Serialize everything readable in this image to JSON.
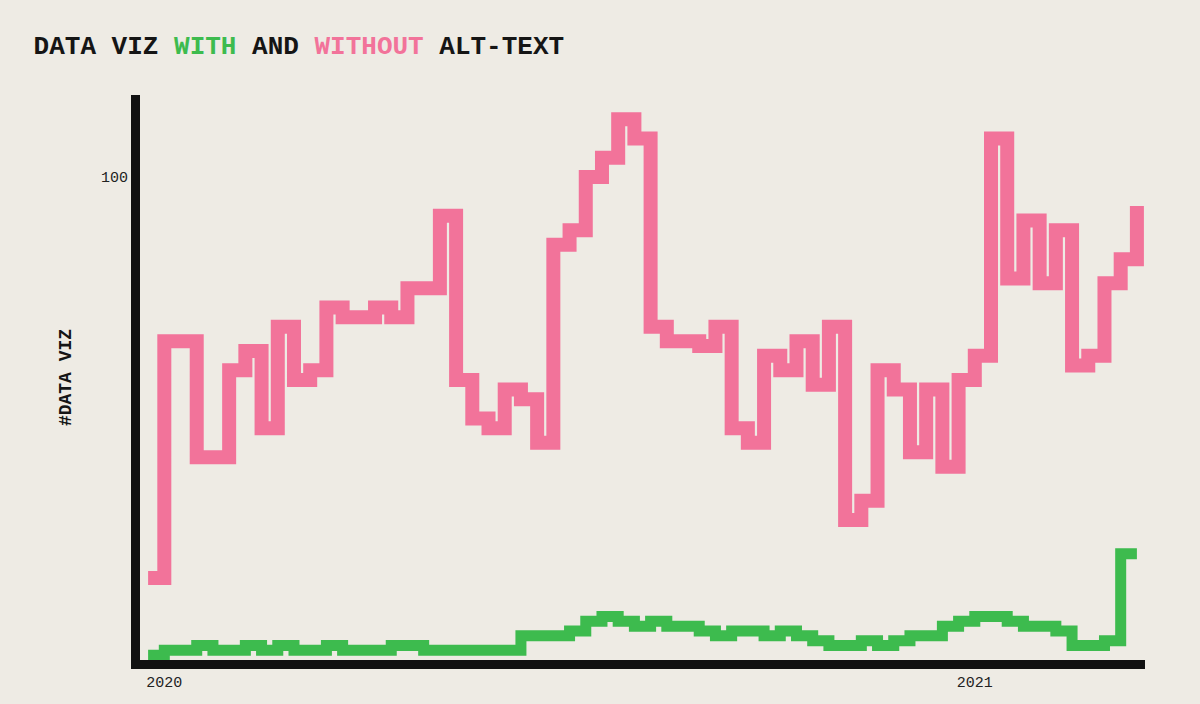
{
  "chart_data": {
    "type": "line",
    "title": "DATA VIZ WITH AND WITHOUT ALT-TEXT",
    "y_label": "#DATA VIZ",
    "line_style": "step",
    "categories": [
      null,
      "2020",
      null,
      null,
      null,
      null,
      null,
      null,
      null,
      null,
      null,
      null,
      null,
      null,
      null,
      null,
      null,
      null,
      null,
      null,
      null,
      null,
      null,
      null,
      null,
      null,
      null,
      null,
      null,
      null,
      null,
      null,
      null,
      null,
      null,
      null,
      null,
      null,
      null,
      null,
      null,
      null,
      null,
      null,
      null,
      null,
      null,
      null,
      null,
      null,
      null,
      "2021",
      null,
      null,
      null,
      null,
      null,
      null,
      null,
      null,
      null,
      null
    ],
    "series": [
      {
        "name": "WITHOUT",
        "color": "#f2739a",
        "values": [
          17,
          66,
          66,
          42,
          42,
          60,
          64,
          48,
          69,
          58,
          60,
          73,
          71,
          71,
          73,
          71,
          77,
          77,
          92,
          58,
          50,
          48,
          56,
          54,
          45,
          86,
          89,
          100,
          104,
          112,
          108,
          69,
          66,
          66,
          65,
          69,
          48,
          45,
          63,
          60,
          66,
          57,
          69,
          29,
          33,
          60,
          56,
          43,
          56,
          40,
          58,
          63,
          108,
          79,
          91,
          78,
          89,
          61,
          63,
          78,
          83,
          94
        ]
      },
      {
        "name": "WITH",
        "color": "#3dbb4e",
        "values": [
          1,
          2,
          2,
          3,
          2,
          2,
          3,
          2,
          3,
          2,
          2,
          3,
          2,
          2,
          2,
          3,
          3,
          2,
          2,
          2,
          2,
          2,
          2,
          5,
          5,
          5,
          6,
          8,
          9,
          8,
          7,
          8,
          7,
          7,
          6,
          5,
          6,
          6,
          5,
          6,
          5,
          4,
          3,
          3,
          4,
          3,
          4,
          5,
          5,
          7,
          8,
          9,
          9,
          8,
          7,
          7,
          6,
          3,
          3,
          4,
          22,
          22
        ]
      }
    ],
    "ylim": [
      0,
      117
    ],
    "yticks": [
      100
    ],
    "grid": false
  }
}
